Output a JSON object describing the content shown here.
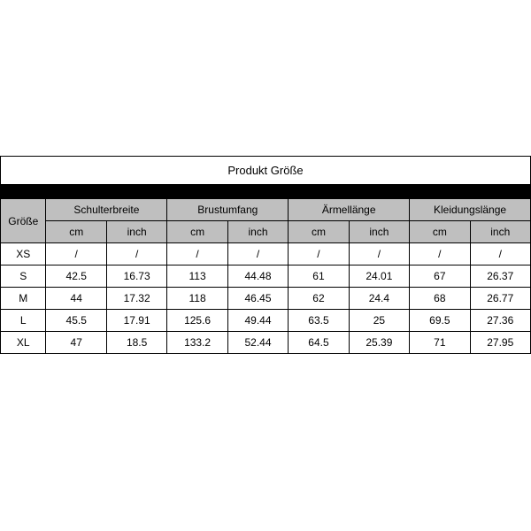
{
  "table": {
    "type": "table",
    "title": "Produkt Größe",
    "size_header": "Größe",
    "groups": [
      "Schulterbreite",
      "Brustumfang",
      "Ärmellänge",
      "Kleidungslänge"
    ],
    "units": [
      "cm",
      "inch"
    ],
    "colors": {
      "header_bg": "#bfbfbf",
      "band_bg": "#000000",
      "border": "#000000",
      "text": "#000000",
      "row_bg": "#ffffff"
    },
    "font_size_body": 12,
    "font_size_title": 13,
    "col_widths_pct": {
      "size": 8.6,
      "measure": 11.43
    },
    "rows": [
      {
        "size": "XS",
        "cells": [
          "/",
          "/",
          "/",
          "/",
          "/",
          "/",
          "/",
          "/"
        ]
      },
      {
        "size": "S",
        "cells": [
          "42.5",
          "16.73",
          "113",
          "44.48",
          "61",
          "24.01",
          "67",
          "26.37"
        ]
      },
      {
        "size": "M",
        "cells": [
          "44",
          "17.32",
          "118",
          "46.45",
          "62",
          "24.4",
          "68",
          "26.77"
        ]
      },
      {
        "size": "L",
        "cells": [
          "45.5",
          "17.91",
          "125.6",
          "49.44",
          "63.5",
          "25",
          "69.5",
          "27.36"
        ]
      },
      {
        "size": "XL",
        "cells": [
          "47",
          "18.5",
          "133.2",
          "52.44",
          "64.5",
          "25.39",
          "71",
          "27.95"
        ]
      }
    ]
  }
}
